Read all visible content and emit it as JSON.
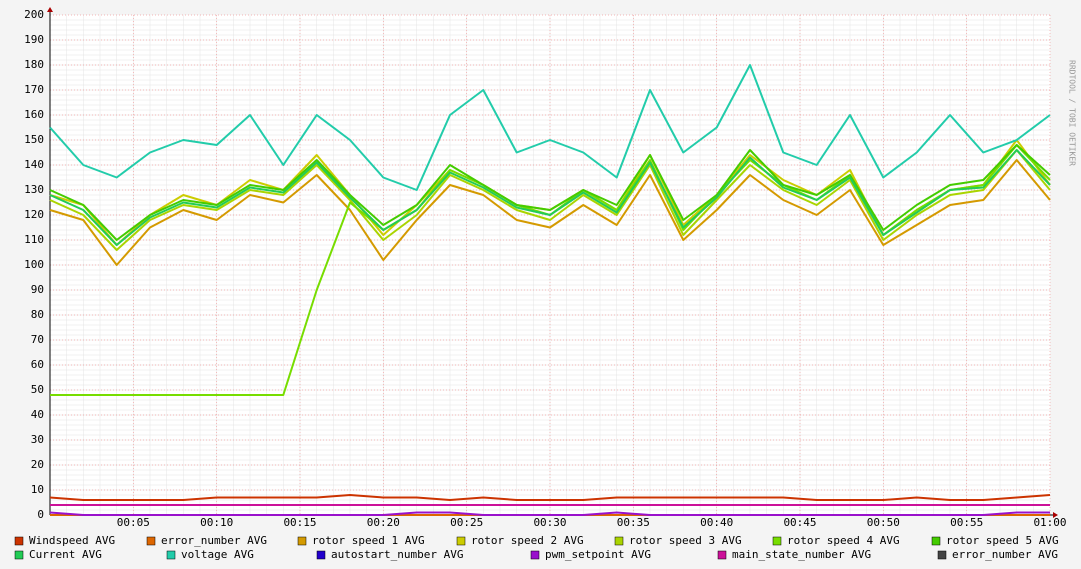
{
  "chart_data": {
    "type": "line",
    "watermark": "RRDTOOL / TOBI OETIKER",
    "x": [
      0,
      2,
      4,
      6,
      8,
      10,
      12,
      14,
      16,
      18,
      20,
      22,
      24,
      26,
      28,
      30,
      32,
      34,
      36,
      38,
      40,
      42,
      44,
      46,
      48,
      50,
      52,
      54,
      56,
      58,
      60
    ],
    "xlim": [
      0,
      60
    ],
    "xticks": [
      {
        "value": 5,
        "label": "00:05"
      },
      {
        "value": 10,
        "label": "00:10"
      },
      {
        "value": 15,
        "label": "00:15"
      },
      {
        "value": 20,
        "label": "00:20"
      },
      {
        "value": 25,
        "label": "00:25"
      },
      {
        "value": 30,
        "label": "00:30"
      },
      {
        "value": 35,
        "label": "00:35"
      },
      {
        "value": 40,
        "label": "00:40"
      },
      {
        "value": 45,
        "label": "00:45"
      },
      {
        "value": 50,
        "label": "00:50"
      },
      {
        "value": 55,
        "label": "00:55"
      },
      {
        "value": 60,
        "label": "01:00"
      }
    ],
    "ylim": [
      0,
      200
    ],
    "yticks": [
      0,
      10,
      20,
      30,
      40,
      50,
      60,
      70,
      80,
      90,
      100,
      110,
      120,
      130,
      140,
      150,
      160,
      170,
      180,
      190,
      200
    ],
    "grid": true,
    "series": [
      {
        "name": "Windspeed AVG",
        "color": "#cc3300",
        "values": [
          7,
          6,
          6,
          6,
          6,
          7,
          7,
          7,
          7,
          8,
          7,
          7,
          6,
          7,
          6,
          6,
          6,
          7,
          7,
          7,
          7,
          7,
          7,
          6,
          6,
          6,
          7,
          6,
          6,
          7,
          8
        ]
      },
      {
        "name": "error_number AVG",
        "color": "#dd6600",
        "values": [
          0,
          0,
          0,
          0,
          0,
          0,
          0,
          0,
          0,
          0,
          0,
          0,
          0,
          0,
          0,
          0,
          0,
          0,
          0,
          0,
          0,
          0,
          0,
          0,
          0,
          0,
          0,
          0,
          0,
          0,
          0
        ]
      },
      {
        "name": "rotor speed 1 AVG",
        "color": "#d49a00",
        "values": [
          122,
          118,
          100,
          115,
          122,
          118,
          128,
          125,
          136,
          122,
          102,
          118,
          132,
          128,
          118,
          115,
          124,
          116,
          136,
          110,
          122,
          136,
          126,
          120,
          130,
          108,
          116,
          124,
          126,
          142,
          126
        ]
      },
      {
        "name": "rotor speed 2 AVG",
        "color": "#cccc00",
        "values": [
          128,
          124,
          108,
          120,
          128,
          124,
          134,
          130,
          144,
          128,
          112,
          124,
          138,
          132,
          124,
          122,
          130,
          122,
          144,
          116,
          128,
          144,
          134,
          128,
          138,
          112,
          122,
          130,
          132,
          150,
          132
        ]
      },
      {
        "name": "rotor speed 3 AVG",
        "color": "#aad400",
        "values": [
          126,
          120,
          106,
          118,
          124,
          122,
          130,
          128,
          140,
          126,
          110,
          120,
          136,
          130,
          122,
          118,
          128,
          120,
          140,
          112,
          126,
          140,
          130,
          124,
          134,
          110,
          120,
          128,
          130,
          146,
          130
        ]
      },
      {
        "name": "rotor speed 4 AVG",
        "color": "#77dd00",
        "values": [
          48,
          48,
          48,
          48,
          48,
          48,
          48,
          48,
          90,
          125,
          114,
          122,
          138,
          132,
          124,
          120,
          130,
          122,
          142,
          114,
          128,
          142,
          132,
          126,
          136,
          112,
          122,
          130,
          132,
          148,
          134
        ]
      },
      {
        "name": "rotor speed 5 AVG",
        "color": "#44cc00",
        "values": [
          130,
          124,
          110,
          120,
          126,
          124,
          132,
          130,
          142,
          128,
          116,
          124,
          140,
          132,
          124,
          122,
          130,
          124,
          144,
          118,
          128,
          146,
          132,
          128,
          136,
          114,
          124,
          132,
          134,
          148,
          136
        ]
      },
      {
        "name": "Current AVG",
        "color": "#22cc55",
        "values": [
          128,
          122,
          108,
          119,
          125,
          123,
          131,
          129,
          141,
          127,
          114,
          122,
          137,
          131,
          123,
          120,
          129,
          121,
          141,
          115,
          127,
          143,
          131,
          126,
          135,
          112,
          121,
          130,
          131,
          146,
          132
        ]
      },
      {
        "name": "voltage AVG",
        "color": "#22ccaa",
        "values": [
          155,
          140,
          135,
          145,
          150,
          148,
          160,
          140,
          160,
          150,
          135,
          130,
          160,
          170,
          145,
          150,
          145,
          135,
          170,
          145,
          155,
          180,
          145,
          140,
          160,
          135,
          145,
          160,
          145,
          150,
          160
        ]
      },
      {
        "name": "autostart_number AVG",
        "color": "#2200cc",
        "values": [
          0,
          0,
          0,
          0,
          0,
          0,
          0,
          0,
          0,
          0,
          0,
          0,
          0,
          0,
          0,
          0,
          0,
          0,
          0,
          0,
          0,
          0,
          0,
          0,
          0,
          0,
          0,
          0,
          0,
          0,
          0
        ]
      },
      {
        "name": "pwm_setpoint AVG",
        "color": "#9911cc",
        "values": [
          1,
          0,
          0,
          0,
          0,
          0,
          0,
          0,
          0,
          0,
          0,
          1,
          1,
          0,
          0,
          0,
          0,
          1,
          0,
          0,
          0,
          0,
          0,
          0,
          0,
          0,
          0,
          0,
          0,
          1,
          1
        ]
      },
      {
        "name": "main_state_number AVG",
        "color": "#cc1199",
        "values": [
          4,
          4,
          4,
          4,
          4,
          4,
          4,
          4,
          4,
          4,
          4,
          4,
          4,
          4,
          4,
          4,
          4,
          4,
          4,
          4,
          4,
          4,
          4,
          4,
          4,
          4,
          4,
          4,
          4,
          4,
          4
        ]
      },
      {
        "name": "error_number AVG",
        "color": "#444444",
        "values": [
          0,
          0,
          0,
          0,
          0,
          0,
          0,
          0,
          0,
          0,
          0,
          0,
          0,
          0,
          0,
          0,
          0,
          0,
          0,
          0,
          0,
          0,
          0,
          0,
          0,
          0,
          0,
          0,
          0,
          0,
          0
        ]
      }
    ]
  }
}
